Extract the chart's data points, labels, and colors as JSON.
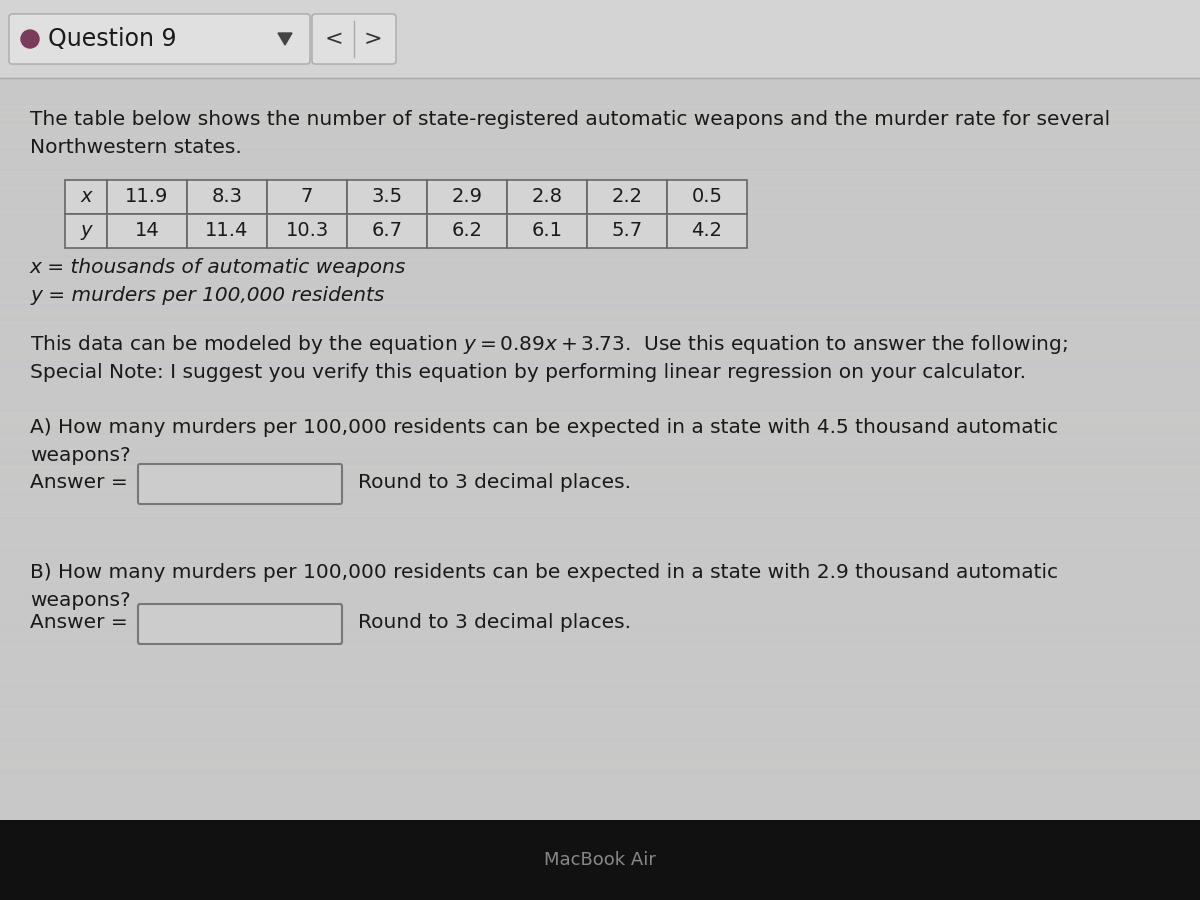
{
  "title": "Question 9",
  "bullet_color": "#7a3b5c",
  "bg_color_header": "#d8d8d8",
  "bg_color_main": "#c8c8c8",
  "bg_color_bottom": "#111111",
  "intro_text_line1": "The table below shows the number of state-registered automatic weapons and the murder rate for several",
  "intro_text_line2": "Northwestern states.",
  "table_x_label": "x",
  "table_y_label": "y",
  "table_x_values": [
    "11.9",
    "8.3",
    "7",
    "3.5",
    "2.9",
    "2.8",
    "2.2",
    "0.5"
  ],
  "table_y_values": [
    "14",
    "11.4",
    "10.3",
    "6.7",
    "6.2",
    "6.1",
    "5.7",
    "4.2"
  ],
  "x_definition": "x = thousands of automatic weapons",
  "y_definition": "y = murders per 100,000 residents",
  "special_note": "Special Note: I suggest you verify this equation by performing linear regression on your calculator.",
  "question_a_line1": "A) How many murders per 100,000 residents can be expected in a state with 4.5 thousand automatic",
  "question_a_line2": "weapons?",
  "answer_label": "Answer =",
  "round_note": "Round to 3 decimal places.",
  "question_b_line1": "B) How many murders per 100,000 residents can be expected in a state with 2.9 thousand automatic",
  "question_b_line2": "weapons?",
  "macbook_label": "MacBook Air",
  "text_color": "#1a1a1a",
  "table_border_color": "#666666",
  "table_fill_color": "#d4d4d4",
  "ansbox_fill": "#cccccc",
  "ansbox_border": "#777777"
}
